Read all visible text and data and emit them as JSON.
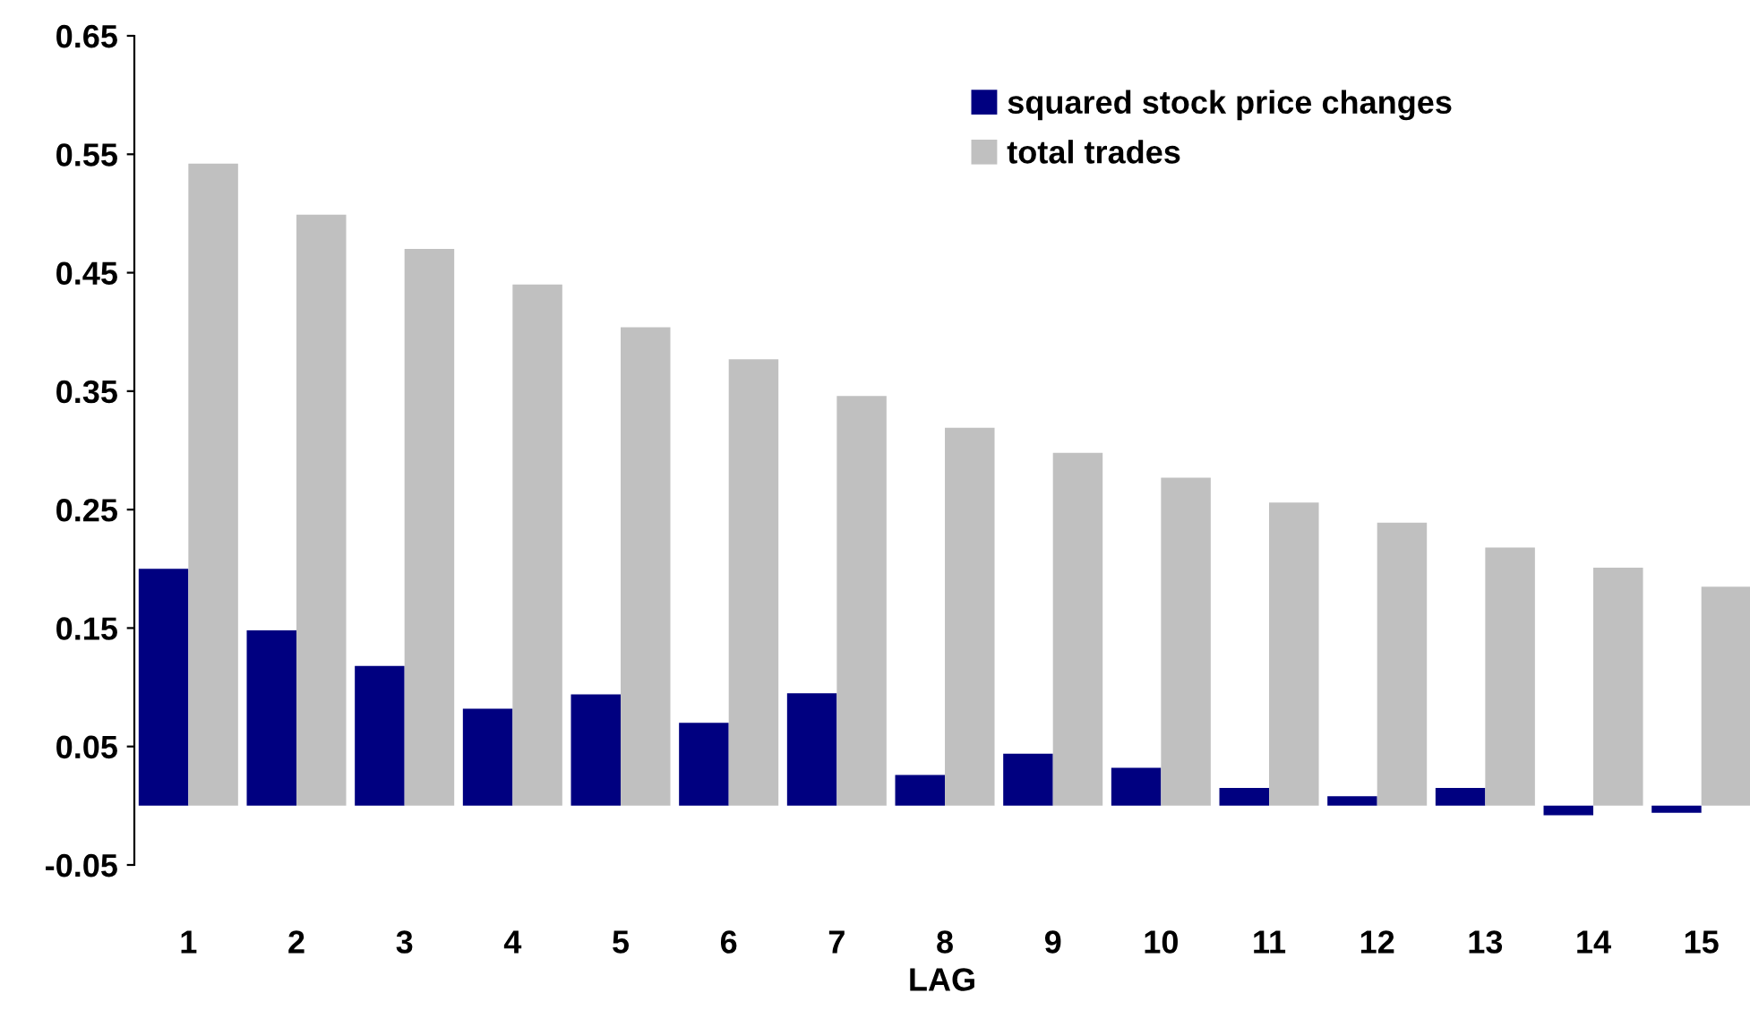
{
  "chart_data": {
    "type": "bar",
    "xlabel": "LAG",
    "categories": [
      "1",
      "2",
      "3",
      "4",
      "5",
      "6",
      "7",
      "8",
      "9",
      "10",
      "11",
      "12",
      "13",
      "14",
      "15"
    ],
    "series": [
      {
        "name": "squared stock price changes",
        "color": "#000080",
        "values": [
          0.2,
          0.148,
          0.118,
          0.082,
          0.094,
          0.07,
          0.095,
          0.026,
          0.044,
          0.032,
          0.015,
          0.008,
          0.015,
          -0.008,
          -0.006
        ]
      },
      {
        "name": "total trades",
        "color": "#c0c0c0",
        "values": [
          0.542,
          0.499,
          0.47,
          0.44,
          0.404,
          0.377,
          0.346,
          0.319,
          0.298,
          0.277,
          0.256,
          0.239,
          0.218,
          0.201,
          0.185
        ]
      }
    ],
    "ylim": [
      -0.05,
      0.65
    ],
    "yticks": [
      -0.05,
      0.05,
      0.15,
      0.25,
      0.35,
      0.45,
      0.55,
      0.65
    ],
    "grid": false,
    "legend": "top right"
  }
}
